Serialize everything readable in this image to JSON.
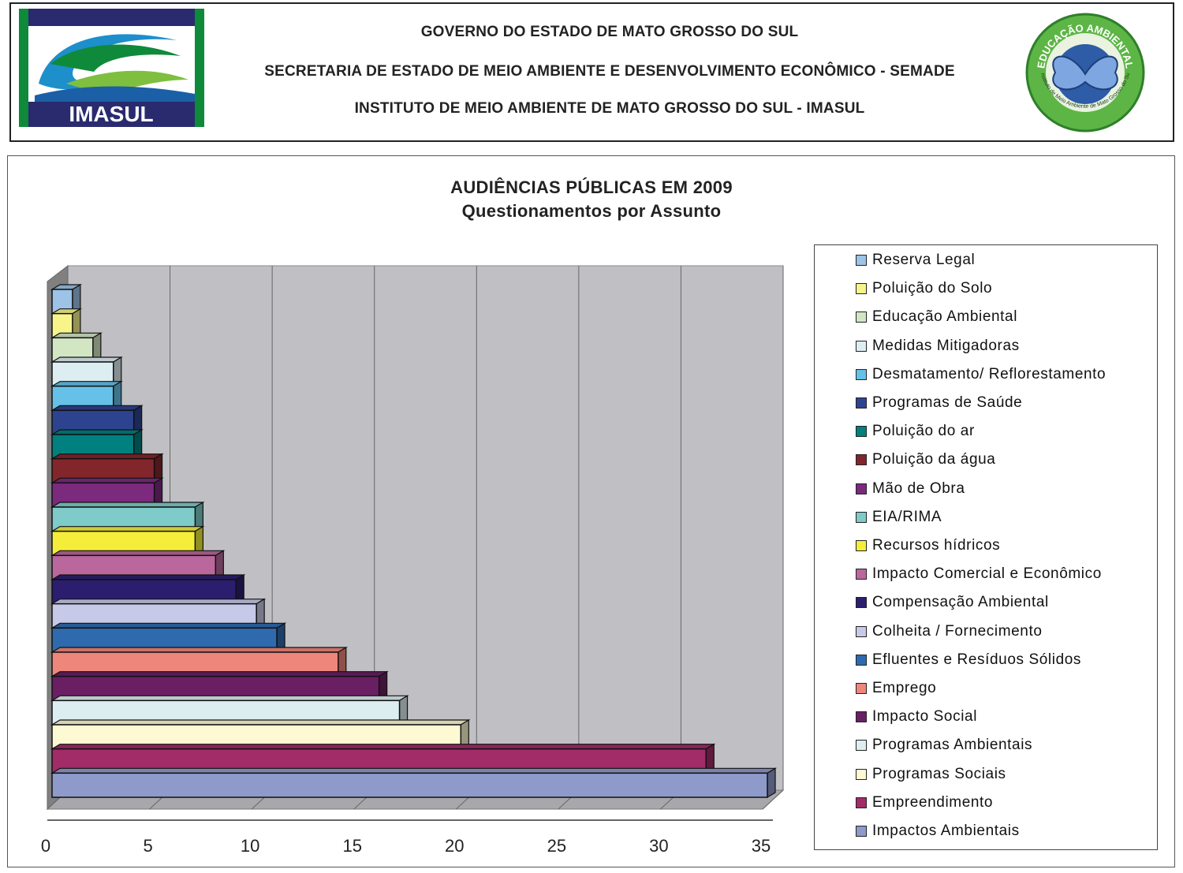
{
  "header": {
    "line1": "GOVERNO DO ESTADO DE MATO GROSSO DO SUL",
    "line2": "SECRETARIA DE ESTADO DE MEIO AMBIENTE E DESENVOLVIMENTO ECONÔMICO - SEMADE",
    "line3": "INSTITUTO DE MEIO AMBIENTE DE MATO GROSSO DO SUL - IMASUL",
    "logo_left_text": "IMASUL",
    "logo_right_top_text": "EDUCAÇÃO AMBIENTAL",
    "logo_right_bottom_text": "Instituto de Meio Ambiente de Mato Grosso do Sul"
  },
  "chart_data": {
    "type": "bar",
    "orientation": "horizontal-3d",
    "title": "AUDIÊNCIAS PÚBLICAS EM 2009",
    "subtitle": "Questionamentos por Assunto",
    "xlabel": "",
    "ylabel": "",
    "xlim": [
      0,
      35
    ],
    "x_ticks": [
      "0",
      "5",
      "10",
      "15",
      "20",
      "25",
      "30",
      "35"
    ],
    "grid": "vertical",
    "legend_position": "right",
    "series": [
      {
        "name": "Reserva Legal",
        "value": 1,
        "color": "#9DC3E6"
      },
      {
        "name": "Poluição do Solo",
        "value": 1,
        "color": "#F7F58A"
      },
      {
        "name": "Educação Ambiental",
        "value": 2,
        "color": "#D3E6C4"
      },
      {
        "name": "Medidas Mitigadoras",
        "value": 3,
        "color": "#DDEEF3"
      },
      {
        "name": "Desmatamento/ Reflorestamento",
        "value": 3,
        "color": "#66C1E8"
      },
      {
        "name": "Programas de Saúde",
        "value": 4,
        "color": "#2E4390"
      },
      {
        "name": "Poluição do ar",
        "value": 4,
        "color": "#00807F"
      },
      {
        "name": "Poluição da água",
        "value": 5,
        "color": "#82262B"
      },
      {
        "name": "Mão de Obra",
        "value": 5,
        "color": "#7B2A7E"
      },
      {
        "name": "EIA/RIMA",
        "value": 7,
        "color": "#7ECBC9"
      },
      {
        "name": "Recursos hídricos",
        "value": 7,
        "color": "#F4EE3A"
      },
      {
        "name": "Impacto Comercial e Econômico",
        "value": 8,
        "color": "#B9679C"
      },
      {
        "name": "Compensação Ambiental",
        "value": 9,
        "color": "#2B1E6E"
      },
      {
        "name": "Colheita / Fornecimento",
        "value": 10,
        "color": "#C7C9E8"
      },
      {
        "name": "Efluentes e Resíduos Sólidos",
        "value": 11,
        "color": "#2F6AAE"
      },
      {
        "name": "Emprego",
        "value": 14,
        "color": "#EE867C"
      },
      {
        "name": "Impacto Social",
        "value": 16,
        "color": "#6A1F63"
      },
      {
        "name": "Programas Ambientais",
        "value": 17,
        "color": "#DDEEF1"
      },
      {
        "name": "Programas Sociais",
        "value": 20,
        "color": "#FDF9D3"
      },
      {
        "name": "Empreendimento",
        "value": 32,
        "color": "#A12C67"
      },
      {
        "name": "Impactos Ambientais",
        "value": 35,
        "color": "#8E9AC9"
      }
    ]
  }
}
